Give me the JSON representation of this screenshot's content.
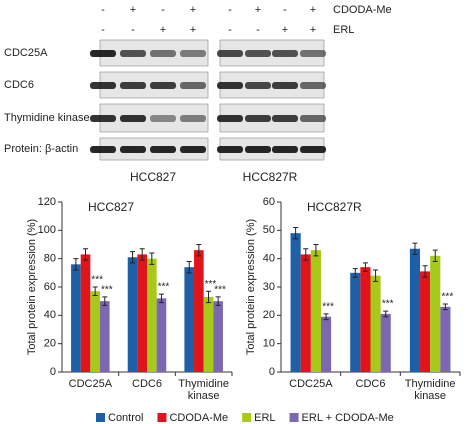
{
  "blot": {
    "treatments": [
      {
        "name": "CDODA-Me",
        "signs": [
          "-",
          "+",
          "-",
          "+"
        ]
      },
      {
        "name": "ERL",
        "signs": [
          "-",
          "-",
          "+",
          "+"
        ]
      }
    ],
    "proteins": [
      "CDC25A",
      "CDC6",
      "Thymidine kinase",
      "Protein: β-actin"
    ],
    "cell_lines": [
      "HCC827",
      "HCC827R"
    ]
  },
  "chart_data": [
    {
      "type": "bar",
      "title": "HCC827",
      "y_label": "Total protein expression (%)",
      "categories": [
        "CDC25A",
        "CDC6",
        "Thymidine kinase"
      ],
      "ylim": [
        0,
        120
      ],
      "yticks": [
        0,
        20,
        40,
        60,
        80,
        100,
        120
      ],
      "series": [
        {
          "name": "Control",
          "color": "#1f5fa8",
          "values": [
            76,
            81,
            74
          ],
          "errors": [
            4,
            4,
            4
          ],
          "annotations": [
            null,
            null,
            null
          ]
        },
        {
          "name": "CDODA-Me",
          "color": "#e0151b",
          "values": [
            83,
            83,
            86
          ],
          "errors": [
            4,
            4,
            4
          ],
          "annotations": [
            null,
            null,
            null
          ]
        },
        {
          "name": "ERL",
          "color": "#a8c91a",
          "values": [
            57,
            80,
            53
          ],
          "errors": [
            3,
            4,
            4
          ],
          "annotations": [
            "***",
            null,
            "***"
          ]
        },
        {
          "name": "ERL + CDODA-Me",
          "color": "#7b68b0",
          "values": [
            50,
            52,
            50
          ],
          "errors": [
            3,
            3,
            3
          ],
          "annotations": [
            "***",
            "***",
            "***"
          ]
        }
      ]
    },
    {
      "type": "bar",
      "title": "HCC827R",
      "y_label": "Total protein expression (%)",
      "categories": [
        "CDC25A",
        "CDC6",
        "Thymidine kinase"
      ],
      "ylim": [
        0,
        60
      ],
      "yticks": [
        0,
        10,
        20,
        30,
        40,
        50,
        60
      ],
      "series": [
        {
          "name": "Control",
          "color": "#1f5fa8",
          "values": [
            49,
            35,
            43.5
          ],
          "errors": [
            2,
            1.5,
            2
          ],
          "annotations": [
            null,
            null,
            null
          ]
        },
        {
          "name": "CDODA-Me",
          "color": "#e0151b",
          "values": [
            41.5,
            37,
            35.5
          ],
          "errors": [
            2,
            1.5,
            2
          ],
          "annotations": [
            null,
            null,
            null
          ]
        },
        {
          "name": "ERL",
          "color": "#a8c91a",
          "values": [
            43,
            34,
            41
          ],
          "errors": [
            2,
            2,
            2
          ],
          "annotations": [
            null,
            null,
            null
          ]
        },
        {
          "name": "ERL + CDODA-Me",
          "color": "#7b68b0",
          "values": [
            19.5,
            20.5,
            23
          ],
          "errors": [
            1,
            1,
            1
          ],
          "annotations": [
            "***",
            "***",
            "***"
          ]
        }
      ]
    }
  ]
}
